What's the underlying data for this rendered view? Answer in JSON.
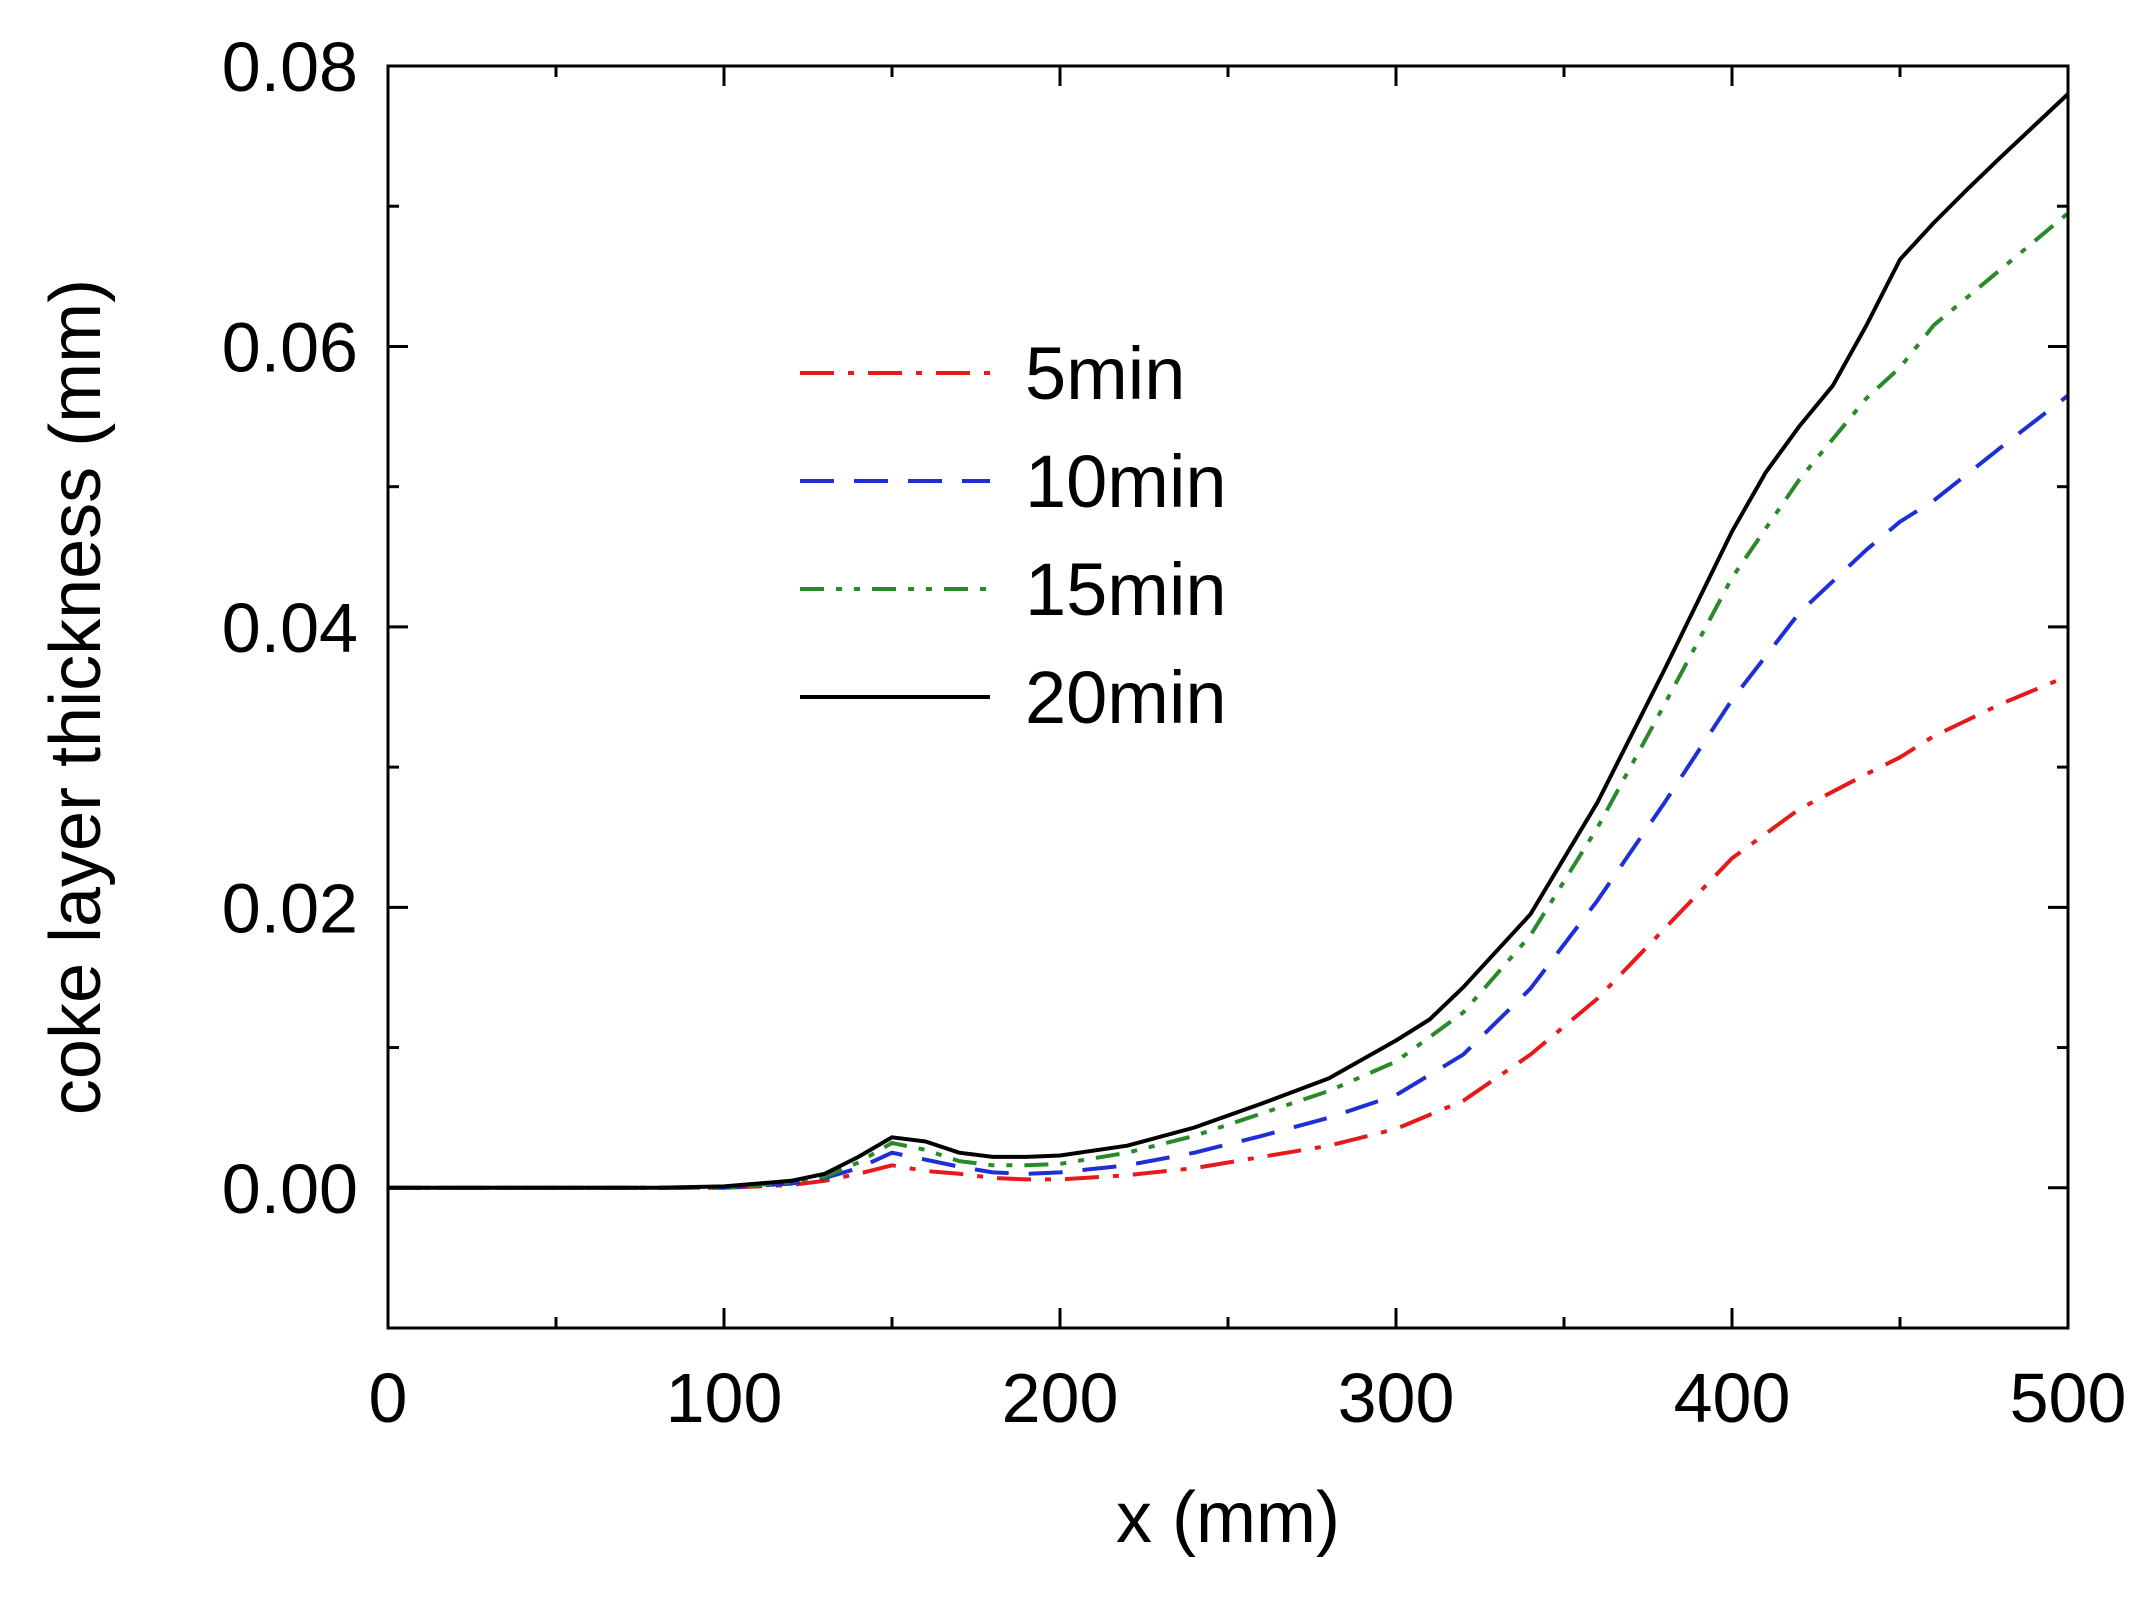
{
  "chart_data": {
    "type": "line",
    "title": "",
    "xlabel": "x (mm)",
    "ylabel": "coke layer thickness (mm)",
    "xlim": [
      0,
      500
    ],
    "ylim": [
      -0.01,
      0.08
    ],
    "xticks": [
      0,
      100,
      200,
      300,
      400,
      500
    ],
    "xtick_labels": [
      "0",
      "100",
      "200",
      "300",
      "400",
      "500"
    ],
    "yticks": [
      0.0,
      0.02,
      0.04,
      0.06,
      0.08
    ],
    "ytick_labels": [
      "0.00",
      "0.02",
      "0.04",
      "0.06",
      "0.08"
    ],
    "grid": false,
    "legend_position": "upper-left",
    "series": [
      {
        "name": "5min",
        "color": "#e8191a",
        "dash": "dash-dot",
        "x": [
          0,
          80,
          100,
          120,
          130,
          140,
          150,
          160,
          170,
          180,
          190,
          200,
          220,
          240,
          260,
          280,
          300,
          320,
          340,
          360,
          380,
          400,
          420,
          440,
          450,
          460,
          480,
          500
        ],
        "y": [
          0,
          0,
          0,
          0.0002,
          0.0005,
          0.001,
          0.0016,
          0.0012,
          0.001,
          0.0007,
          0.0006,
          0.0006,
          0.0009,
          0.0014,
          0.0022,
          0.003,
          0.0042,
          0.0062,
          0.0095,
          0.0135,
          0.0185,
          0.0235,
          0.027,
          0.0295,
          0.0307,
          0.0322,
          0.0345,
          0.0365
        ]
      },
      {
        "name": "10min",
        "color": "#1f2fd6",
        "dash": "dash",
        "x": [
          0,
          80,
          100,
          120,
          130,
          140,
          150,
          160,
          170,
          180,
          190,
          200,
          220,
          240,
          260,
          280,
          300,
          320,
          340,
          360,
          380,
          400,
          420,
          440,
          450,
          460,
          480,
          500
        ],
        "y": [
          0,
          0,
          0,
          0.0003,
          0.0007,
          0.0014,
          0.0025,
          0.002,
          0.0015,
          0.0011,
          0.001,
          0.0011,
          0.0016,
          0.0025,
          0.0037,
          0.005,
          0.0066,
          0.0095,
          0.0142,
          0.0205,
          0.0275,
          0.0348,
          0.041,
          0.0455,
          0.0475,
          0.049,
          0.0528,
          0.0565
        ]
      },
      {
        "name": "15min",
        "color": "#2a8a2a",
        "dash": "dash-dot-dot",
        "x": [
          0,
          80,
          100,
          120,
          130,
          140,
          150,
          160,
          170,
          180,
          190,
          200,
          220,
          240,
          260,
          280,
          300,
          320,
          340,
          360,
          380,
          400,
          420,
          440,
          450,
          460,
          480,
          500
        ],
        "y": [
          0,
          0,
          0,
          0.0004,
          0.0008,
          0.0018,
          0.0032,
          0.0027,
          0.0019,
          0.0016,
          0.0016,
          0.0017,
          0.0025,
          0.0037,
          0.0053,
          0.0069,
          0.009,
          0.0125,
          0.018,
          0.0257,
          0.0345,
          0.0435,
          0.0505,
          0.0563,
          0.0585,
          0.0615,
          0.0655,
          0.0695
        ]
      },
      {
        "name": "20min",
        "color": "#000000",
        "dash": "solid",
        "x": [
          0,
          80,
          100,
          120,
          130,
          140,
          150,
          160,
          170,
          180,
          190,
          200,
          220,
          240,
          260,
          280,
          300,
          310,
          320,
          340,
          360,
          380,
          400,
          410,
          420,
          430,
          440,
          450,
          460,
          470,
          480,
          500
        ],
        "y": [
          0,
          0,
          0.0001,
          0.0005,
          0.001,
          0.0022,
          0.0036,
          0.0033,
          0.0025,
          0.0022,
          0.0022,
          0.0023,
          0.003,
          0.0043,
          0.006,
          0.0078,
          0.0105,
          0.012,
          0.0143,
          0.0195,
          0.0275,
          0.037,
          0.0468,
          0.051,
          0.0543,
          0.0572,
          0.0615,
          0.0662,
          0.0688,
          0.0712,
          0.0735,
          0.078
        ]
      }
    ]
  }
}
